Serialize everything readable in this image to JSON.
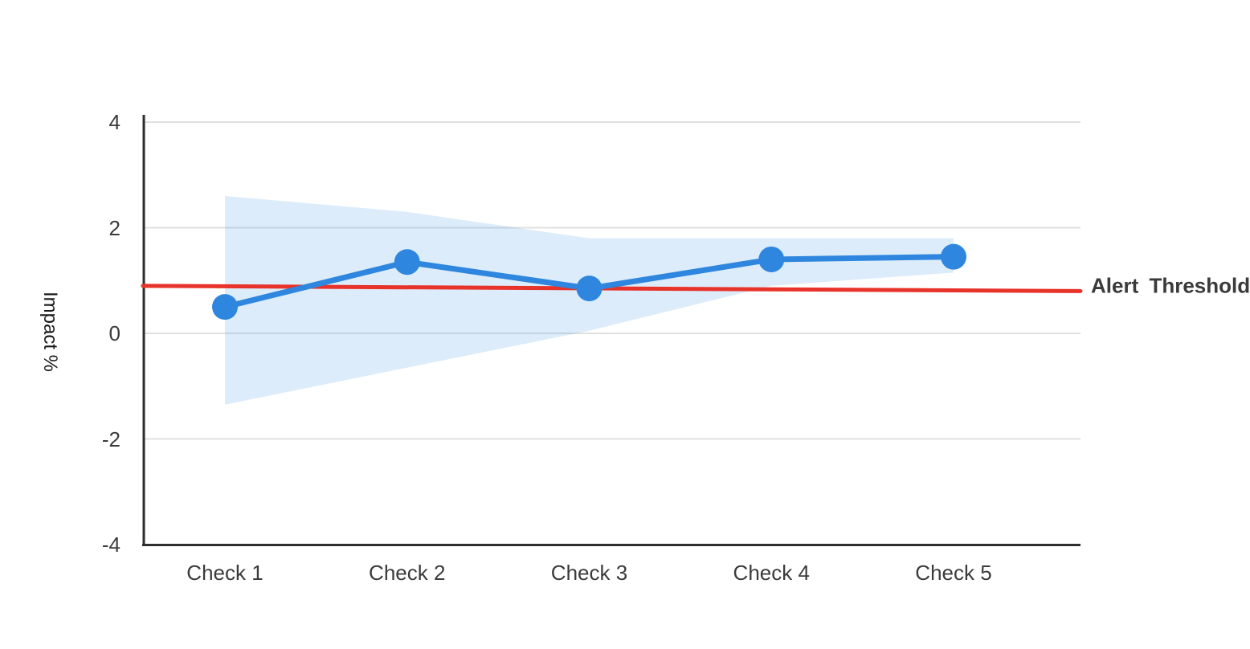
{
  "chart_data": {
    "type": "line",
    "title": "",
    "ylabel": "Impact %",
    "xlabel": "",
    "categories": [
      "Check 1",
      "Check 2",
      "Check 3",
      "Check 4",
      "Check 5"
    ],
    "series": [
      {
        "name": "Impact %",
        "values": [
          0.5,
          1.35,
          0.85,
          1.4,
          1.45
        ],
        "color": "#2e86de",
        "marker": "circle"
      }
    ],
    "confidence_band": {
      "lower": [
        -1.35,
        -0.65,
        0.05,
        0.9,
        1.15
      ],
      "upper": [
        2.6,
        2.3,
        1.8,
        1.8,
        1.8
      ],
      "color": "#2e86de",
      "opacity": 0.16
    },
    "threshold": {
      "label": "Alert Threshold",
      "start_value": 0.9,
      "end_value": 0.8,
      "color": "#e8332a"
    },
    "yticks": [
      4,
      2,
      0,
      -2,
      -4
    ],
    "ylim": [
      -4,
      4.15
    ],
    "grid": true,
    "legend_position": "none"
  },
  "colors": {
    "line": "#2e86de",
    "band_fill_effective": "#dcebfb",
    "threshold": "#e8332a",
    "grid": "#e0e0e0",
    "axis": "#2d2d2d",
    "tick_text": "#3b3b3b",
    "label_text": "#1a1a1a"
  }
}
